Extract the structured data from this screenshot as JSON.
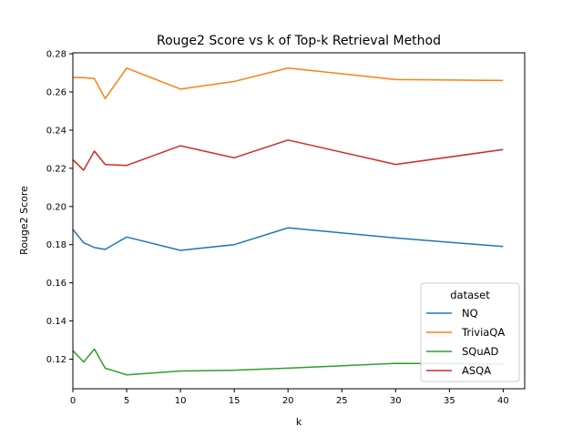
{
  "chart_data": {
    "type": "line",
    "title": "Rouge2 Score vs k of Top-k Retrieval Method",
    "xlabel": "k",
    "ylabel": "Rouge2 Score",
    "xlim": [
      0,
      42
    ],
    "ylim": [
      0.1045,
      0.2805
    ],
    "xticks": [
      0,
      5,
      10,
      15,
      20,
      25,
      30,
      35,
      40
    ],
    "yticks": [
      0.12,
      0.14,
      0.16,
      0.18,
      0.2,
      0.22,
      0.24,
      0.26,
      0.28
    ],
    "ytick_labels": [
      "0.12",
      "0.14",
      "0.16",
      "0.18",
      "0.20",
      "0.22",
      "0.24",
      "0.26",
      "0.28"
    ],
    "grid": false,
    "legend": {
      "title": "dataset",
      "placement": "lower-right"
    },
    "x": [
      0,
      1,
      2,
      3,
      5,
      10,
      15,
      20,
      30,
      40
    ],
    "series": [
      {
        "name": "NQ",
        "color": "#1f77b4",
        "values": [
          0.188,
          0.181,
          0.1785,
          0.1775,
          0.184,
          0.177,
          0.18,
          0.1888,
          0.1835,
          0.179
        ]
      },
      {
        "name": "TriviaQA",
        "color": "#ff7f0e",
        "values": [
          0.2675,
          0.2675,
          0.267,
          0.2565,
          0.2725,
          0.2615,
          0.2655,
          0.2725,
          0.2665,
          0.266
        ]
      },
      {
        "name": "SQuAD",
        "color": "#2ca02c",
        "values": [
          0.1245,
          0.1185,
          0.1253,
          0.1153,
          0.1118,
          0.1138,
          0.1142,
          0.1153,
          0.1178,
          0.1175
        ]
      },
      {
        "name": "ASQA",
        "color": "#d62728",
        "values": [
          0.2245,
          0.219,
          0.229,
          0.222,
          0.2215,
          0.2318,
          0.2255,
          0.2348,
          0.222,
          0.2298
        ]
      }
    ]
  }
}
